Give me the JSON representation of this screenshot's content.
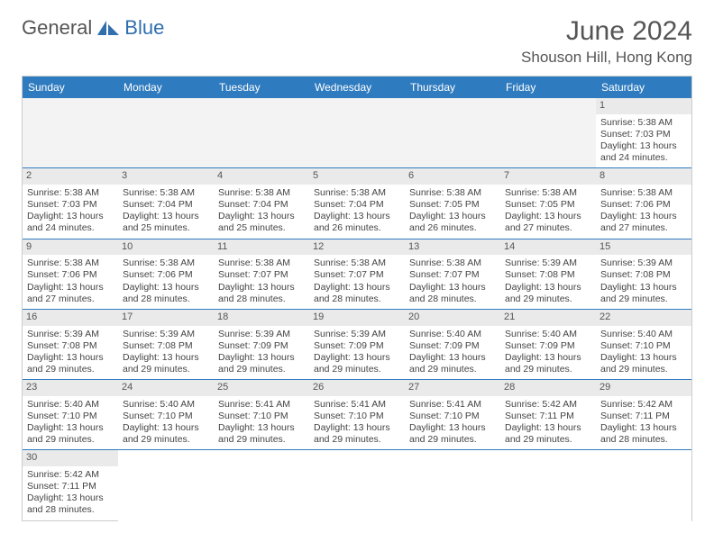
{
  "brand": {
    "part1": "General",
    "part2": "Blue",
    "logo_color": "#2f6fae"
  },
  "header": {
    "title": "June 2024",
    "location": "Shouson Hill, Hong Kong"
  },
  "colors": {
    "header_bg": "#2f7bbf",
    "row_divider": "#2f7bbf",
    "daynum_bg": "#eaeaea"
  },
  "day_headers": [
    "Sunday",
    "Monday",
    "Tuesday",
    "Wednesday",
    "Thursday",
    "Friday",
    "Saturday"
  ],
  "weeks": [
    [
      null,
      null,
      null,
      null,
      null,
      null,
      {
        "n": "1",
        "sr": "Sunrise: 5:38 AM",
        "ss": "Sunset: 7:03 PM",
        "dl": "Daylight: 13 hours and 24 minutes."
      }
    ],
    [
      {
        "n": "2",
        "sr": "Sunrise: 5:38 AM",
        "ss": "Sunset: 7:03 PM",
        "dl": "Daylight: 13 hours and 24 minutes."
      },
      {
        "n": "3",
        "sr": "Sunrise: 5:38 AM",
        "ss": "Sunset: 7:04 PM",
        "dl": "Daylight: 13 hours and 25 minutes."
      },
      {
        "n": "4",
        "sr": "Sunrise: 5:38 AM",
        "ss": "Sunset: 7:04 PM",
        "dl": "Daylight: 13 hours and 25 minutes."
      },
      {
        "n": "5",
        "sr": "Sunrise: 5:38 AM",
        "ss": "Sunset: 7:04 PM",
        "dl": "Daylight: 13 hours and 26 minutes."
      },
      {
        "n": "6",
        "sr": "Sunrise: 5:38 AM",
        "ss": "Sunset: 7:05 PM",
        "dl": "Daylight: 13 hours and 26 minutes."
      },
      {
        "n": "7",
        "sr": "Sunrise: 5:38 AM",
        "ss": "Sunset: 7:05 PM",
        "dl": "Daylight: 13 hours and 27 minutes."
      },
      {
        "n": "8",
        "sr": "Sunrise: 5:38 AM",
        "ss": "Sunset: 7:06 PM",
        "dl": "Daylight: 13 hours and 27 minutes."
      }
    ],
    [
      {
        "n": "9",
        "sr": "Sunrise: 5:38 AM",
        "ss": "Sunset: 7:06 PM",
        "dl": "Daylight: 13 hours and 27 minutes."
      },
      {
        "n": "10",
        "sr": "Sunrise: 5:38 AM",
        "ss": "Sunset: 7:06 PM",
        "dl": "Daylight: 13 hours and 28 minutes."
      },
      {
        "n": "11",
        "sr": "Sunrise: 5:38 AM",
        "ss": "Sunset: 7:07 PM",
        "dl": "Daylight: 13 hours and 28 minutes."
      },
      {
        "n": "12",
        "sr": "Sunrise: 5:38 AM",
        "ss": "Sunset: 7:07 PM",
        "dl": "Daylight: 13 hours and 28 minutes."
      },
      {
        "n": "13",
        "sr": "Sunrise: 5:38 AM",
        "ss": "Sunset: 7:07 PM",
        "dl": "Daylight: 13 hours and 28 minutes."
      },
      {
        "n": "14",
        "sr": "Sunrise: 5:39 AM",
        "ss": "Sunset: 7:08 PM",
        "dl": "Daylight: 13 hours and 29 minutes."
      },
      {
        "n": "15",
        "sr": "Sunrise: 5:39 AM",
        "ss": "Sunset: 7:08 PM",
        "dl": "Daylight: 13 hours and 29 minutes."
      }
    ],
    [
      {
        "n": "16",
        "sr": "Sunrise: 5:39 AM",
        "ss": "Sunset: 7:08 PM",
        "dl": "Daylight: 13 hours and 29 minutes."
      },
      {
        "n": "17",
        "sr": "Sunrise: 5:39 AM",
        "ss": "Sunset: 7:08 PM",
        "dl": "Daylight: 13 hours and 29 minutes."
      },
      {
        "n": "18",
        "sr": "Sunrise: 5:39 AM",
        "ss": "Sunset: 7:09 PM",
        "dl": "Daylight: 13 hours and 29 minutes."
      },
      {
        "n": "19",
        "sr": "Sunrise: 5:39 AM",
        "ss": "Sunset: 7:09 PM",
        "dl": "Daylight: 13 hours and 29 minutes."
      },
      {
        "n": "20",
        "sr": "Sunrise: 5:40 AM",
        "ss": "Sunset: 7:09 PM",
        "dl": "Daylight: 13 hours and 29 minutes."
      },
      {
        "n": "21",
        "sr": "Sunrise: 5:40 AM",
        "ss": "Sunset: 7:09 PM",
        "dl": "Daylight: 13 hours and 29 minutes."
      },
      {
        "n": "22",
        "sr": "Sunrise: 5:40 AM",
        "ss": "Sunset: 7:10 PM",
        "dl": "Daylight: 13 hours and 29 minutes."
      }
    ],
    [
      {
        "n": "23",
        "sr": "Sunrise: 5:40 AM",
        "ss": "Sunset: 7:10 PM",
        "dl": "Daylight: 13 hours and 29 minutes."
      },
      {
        "n": "24",
        "sr": "Sunrise: 5:40 AM",
        "ss": "Sunset: 7:10 PM",
        "dl": "Daylight: 13 hours and 29 minutes."
      },
      {
        "n": "25",
        "sr": "Sunrise: 5:41 AM",
        "ss": "Sunset: 7:10 PM",
        "dl": "Daylight: 13 hours and 29 minutes."
      },
      {
        "n": "26",
        "sr": "Sunrise: 5:41 AM",
        "ss": "Sunset: 7:10 PM",
        "dl": "Daylight: 13 hours and 29 minutes."
      },
      {
        "n": "27",
        "sr": "Sunrise: 5:41 AM",
        "ss": "Sunset: 7:10 PM",
        "dl": "Daylight: 13 hours and 29 minutes."
      },
      {
        "n": "28",
        "sr": "Sunrise: 5:42 AM",
        "ss": "Sunset: 7:11 PM",
        "dl": "Daylight: 13 hours and 29 minutes."
      },
      {
        "n": "29",
        "sr": "Sunrise: 5:42 AM",
        "ss": "Sunset: 7:11 PM",
        "dl": "Daylight: 13 hours and 28 minutes."
      }
    ],
    [
      {
        "n": "30",
        "sr": "Sunrise: 5:42 AM",
        "ss": "Sunset: 7:11 PM",
        "dl": "Daylight: 13 hours and 28 minutes."
      },
      null,
      null,
      null,
      null,
      null,
      null
    ]
  ]
}
